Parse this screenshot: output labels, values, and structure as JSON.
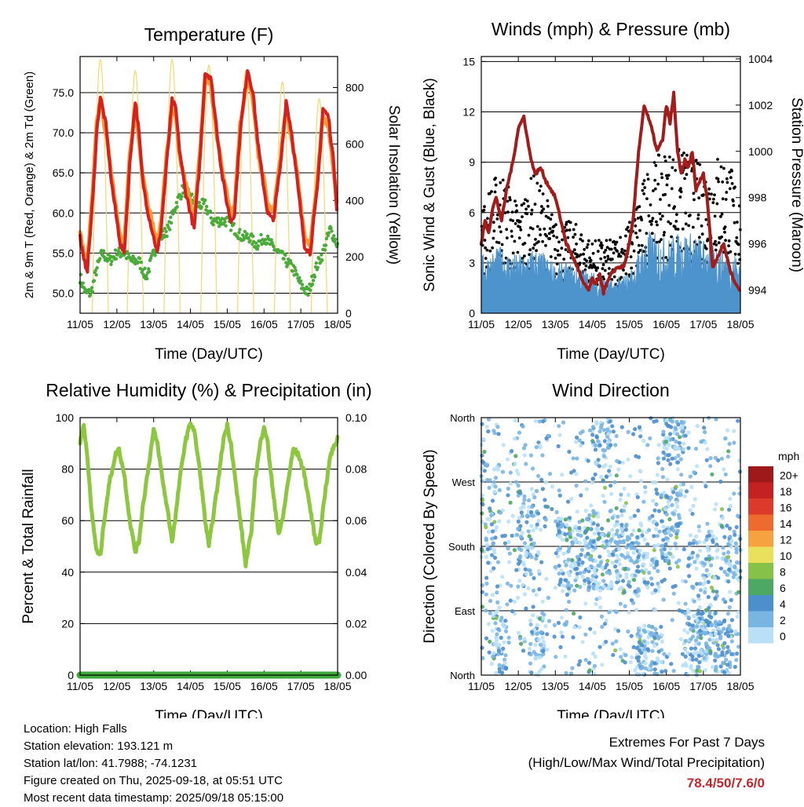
{
  "chart_data": [
    {
      "type": "line",
      "title": "Temperature (F)",
      "xlabel": "Time (Day/UTC)",
      "ylabel": "2m & 9m T (Red, Orange) & 2m Td (Green)",
      "ylabel_right": "Solar Insolation (Yellow)",
      "x_ticks": [
        "11/05",
        "12/05",
        "13/05",
        "14/05",
        "15/05",
        "16/05",
        "17/05",
        "18/05"
      ],
      "y_ticks": [
        "50.0",
        "55.0",
        "60.0",
        "65.0",
        "70.0",
        "75.0"
      ],
      "y_right_ticks": [
        "0",
        "200",
        "400",
        "600",
        "800"
      ],
      "ylim": [
        47.5,
        79.5
      ],
      "ylim_right": [
        0,
        910
      ],
      "grid": true,
      "colors": {
        "t2m": "#d62020",
        "t9m": "#f59b30",
        "td2m": "#4aaa3a",
        "solar": "#f5d76e"
      },
      "series": [
        {
          "key": "t2m",
          "x": [
            0,
            0.1,
            0.2,
            0.35,
            0.45,
            0.55,
            0.7,
            0.85,
            1.0,
            1.1,
            1.2,
            1.35,
            1.5,
            1.6,
            1.7,
            1.85,
            2.0,
            2.1,
            2.2,
            2.35,
            2.5,
            2.6,
            2.7,
            2.85,
            3.0,
            3.1,
            3.25,
            3.4,
            3.55,
            3.7,
            3.85,
            4.0,
            4.1,
            4.2,
            4.35,
            4.55,
            4.7,
            4.85,
            5.0,
            5.1,
            5.25,
            5.45,
            5.6,
            5.75,
            5.9,
            6.0,
            6.1,
            6.25,
            6.45,
            6.6,
            6.75,
            6.9,
            7.0
          ],
          "values": [
            57,
            54,
            53,
            62,
            70,
            74.5,
            71,
            64,
            59,
            56,
            55,
            66,
            74,
            70,
            64,
            60,
            57,
            55,
            58,
            66,
            74,
            73,
            68,
            63,
            60,
            58,
            66,
            77.5,
            77,
            71,
            65,
            61,
            59,
            60,
            70,
            78,
            75,
            68,
            63,
            60,
            59,
            66,
            74,
            70,
            64,
            60,
            56,
            55,
            63,
            73,
            72,
            66,
            59
          ]
        },
        {
          "key": "t9m",
          "x": [
            0,
            0.1,
            0.2,
            0.35,
            0.45,
            0.55,
            0.7,
            0.85,
            1.0,
            1.1,
            1.2,
            1.35,
            1.5,
            1.6,
            1.7,
            1.85,
            2.0,
            2.1,
            2.2,
            2.35,
            2.5,
            2.6,
            2.7,
            2.85,
            3.0,
            3.1,
            3.25,
            3.4,
            3.55,
            3.7,
            3.85,
            4.0,
            4.1,
            4.2,
            4.35,
            4.55,
            4.7,
            4.85,
            5.0,
            5.1,
            5.25,
            5.45,
            5.6,
            5.75,
            5.9,
            6.0,
            6.1,
            6.25,
            6.45,
            6.6,
            6.75,
            6.9,
            7.0
          ],
          "values": [
            57.5,
            55,
            54,
            63,
            71,
            74,
            70,
            65,
            60,
            57,
            56,
            67,
            73,
            69,
            65,
            61,
            58,
            56,
            59,
            67,
            73,
            72,
            67,
            64,
            61,
            59,
            67,
            77,
            76,
            70,
            66,
            62,
            60,
            61,
            71,
            77,
            74,
            67,
            64,
            61,
            60,
            67,
            73,
            69,
            65,
            61,
            57,
            56,
            64,
            72,
            71,
            65,
            60
          ]
        },
        {
          "key": "td2m",
          "x": [
            0,
            0.15,
            0.3,
            0.45,
            0.6,
            0.8,
            1.0,
            1.2,
            1.4,
            1.6,
            1.8,
            2.0,
            2.2,
            2.4,
            2.6,
            2.8,
            3.0,
            3.2,
            3.4,
            3.6,
            3.8,
            4.0,
            4.2,
            4.4,
            4.6,
            4.8,
            5.0,
            5.2,
            5.4,
            5.6,
            5.8,
            6.0,
            6.2,
            6.4,
            6.6,
            6.8,
            7.0
          ],
          "values": [
            52,
            50,
            50,
            53,
            55,
            54,
            55,
            55,
            54,
            54,
            52,
            55,
            57,
            58,
            61,
            63,
            62,
            61,
            61,
            59,
            59,
            59,
            58,
            57,
            57,
            56,
            57,
            56,
            55,
            54,
            53,
            51,
            50,
            53,
            55,
            58,
            56
          ]
        },
        {
          "key": "solar",
          "peaks": [
            0.55,
            1.5,
            2.5,
            3.5,
            4.5,
            5.5,
            6.5
          ],
          "values": [
            900,
            860,
            900,
            880,
            860,
            820,
            760
          ]
        }
      ]
    },
    {
      "type": "scatter",
      "title": "Winds (mph) & Pressure (mb)",
      "xlabel": "Time (Day/UTC)",
      "ylabel": "Sonic Wind & Gust (Blue, Black)",
      "ylabel_right": "Station Pressure (Maroon)",
      "x_ticks": [
        "11/05",
        "12/05",
        "13/05",
        "14/05",
        "15/05",
        "16/05",
        "17/05",
        "18/05"
      ],
      "y_ticks": [
        "0",
        "3",
        "6",
        "9",
        "12",
        "15"
      ],
      "y_right_ticks": [
        "994",
        "996",
        "998",
        "1000",
        "1002",
        "1004"
      ],
      "ylim": [
        0,
        15.3
      ],
      "ylim_right": [
        993.0,
        1004.1
      ],
      "grid": true,
      "colors": {
        "wind": "#4d93cc",
        "gust": "#000000",
        "pressure": "#a21c1c"
      },
      "series": [
        {
          "key": "pressure",
          "x": [
            0,
            0.1,
            0.2,
            0.3,
            0.4,
            0.55,
            0.7,
            0.85,
            1.0,
            1.15,
            1.3,
            1.45,
            1.6,
            1.75,
            1.9,
            2.0,
            2.15,
            2.3,
            2.45,
            2.6,
            2.75,
            2.9,
            3.0,
            3.1,
            3.2,
            3.3,
            3.4,
            3.55,
            3.7,
            3.85,
            4.0,
            4.1,
            4.25,
            4.4,
            4.5,
            4.6,
            4.75,
            4.9,
            5.0,
            5.1,
            5.2,
            5.3,
            5.4,
            5.5,
            5.6,
            5.7,
            5.8,
            5.9,
            6.0,
            6.1,
            6.25,
            6.4,
            6.55,
            6.7,
            6.85,
            7.0
          ],
          "values": [
            996,
            997,
            996.5,
            997.5,
            998,
            997,
            998.5,
            999.5,
            1001,
            1001.5,
            1000,
            999,
            999.3,
            998.7,
            998.3,
            998,
            997,
            996,
            995.5,
            995,
            994.3,
            994,
            994.5,
            994.2,
            994.7,
            993.9,
            994.3,
            994.8,
            995,
            995,
            996,
            997,
            1000,
            1002,
            1001.5,
            1001,
            1000,
            1000.5,
            1002,
            1001.2,
            1002.5,
            1000,
            999,
            999.6,
            999.3,
            1000,
            998.3,
            998.7,
            999,
            998,
            995,
            995.5,
            996,
            995,
            994.3,
            994
          ]
        },
        {
          "key": "wind",
          "envelope_x": [
            0,
            0.5,
            1,
            1.5,
            2,
            2.5,
            3,
            3.5,
            4,
            4.5,
            5,
            5.5,
            6,
            6.5,
            7
          ],
          "envelope_top": [
            3.5,
            4,
            3.5,
            4,
            3,
            3,
            2.5,
            2,
            2.5,
            5,
            4.5,
            5,
            4.5,
            4,
            3.5
          ]
        },
        {
          "key": "gust",
          "envelope_x": [
            0,
            0.5,
            1,
            1.5,
            2,
            2.5,
            3,
            3.5,
            4,
            4.5,
            5,
            5.5,
            6,
            6.5,
            7
          ],
          "envelope_top": [
            6,
            8,
            6,
            8,
            5,
            5,
            4,
            4,
            5,
            8,
            9,
            9,
            8,
            9,
            7
          ]
        }
      ]
    },
    {
      "type": "line",
      "title": "Relative Humidity (%) & Precipitation (in)",
      "xlabel": "Time (Day/UTC)",
      "ylabel": "Percent & Total Rainfall",
      "x_ticks": [
        "11/05",
        "12/05",
        "13/05",
        "14/05",
        "15/05",
        "16/05",
        "17/05",
        "18/05"
      ],
      "y_ticks": [
        "0",
        "20",
        "40",
        "60",
        "80",
        "100"
      ],
      "y_right_ticks": [
        "0.00",
        "0.02",
        "0.04",
        "0.06",
        "0.08",
        "0.10"
      ],
      "ylim": [
        0,
        100
      ],
      "ylim_right": [
        0,
        0.1
      ],
      "grid": true,
      "colors": {
        "rh": "#8dc63f",
        "precip": "#3ea83a"
      },
      "series": [
        {
          "key": "rh",
          "x": [
            0,
            0.1,
            0.2,
            0.3,
            0.45,
            0.55,
            0.65,
            0.8,
            0.95,
            1.05,
            1.2,
            1.35,
            1.5,
            1.6,
            1.7,
            1.85,
            2.0,
            2.1,
            2.25,
            2.4,
            2.5,
            2.6,
            2.7,
            2.85,
            3.0,
            3.1,
            3.25,
            3.4,
            3.5,
            3.6,
            3.75,
            3.9,
            4.0,
            4.1,
            4.25,
            4.4,
            4.5,
            4.65,
            4.75,
            4.9,
            5.0,
            5.1,
            5.25,
            5.4,
            5.5,
            5.65,
            5.8,
            5.95,
            6.1,
            6.25,
            6.4,
            6.5,
            6.65,
            6.8,
            7.0
          ],
          "values": [
            90,
            97,
            85,
            65,
            48,
            46,
            60,
            75,
            85,
            88,
            78,
            60,
            48,
            52,
            65,
            80,
            95,
            90,
            75,
            62,
            52,
            62,
            75,
            90,
            98,
            95,
            80,
            60,
            50,
            60,
            75,
            92,
            97,
            90,
            72,
            55,
            43,
            55,
            75,
            90,
            97,
            90,
            70,
            55,
            60,
            75,
            88,
            85,
            78,
            65,
            52,
            52,
            70,
            85,
            92
          ]
        },
        {
          "key": "precip",
          "x": [
            0,
            7
          ],
          "values": [
            0,
            0
          ]
        }
      ]
    },
    {
      "type": "scatter",
      "title": "Wind Direction",
      "xlabel": "Time (Day/UTC)",
      "ylabel": "Direction (Colored By Speed)",
      "x_ticks": [
        "11/05",
        "12/05",
        "13/05",
        "14/05",
        "15/05",
        "16/05",
        "17/05",
        "18/05"
      ],
      "y_ticks": [
        "North",
        "East",
        "South",
        "West",
        "North"
      ],
      "ylim": [
        0,
        360
      ],
      "grid": true,
      "legend": {
        "title": "mph",
        "labels": [
          "20+",
          "18",
          "16",
          "14",
          "12",
          "10",
          "8",
          "6",
          "4",
          "2",
          "0"
        ],
        "colors": [
          "#9e1a1a",
          "#c42222",
          "#dd3a2b",
          "#ee6a2e",
          "#f7a240",
          "#e9e05b",
          "#86c24a",
          "#4ca863",
          "#4d8fcc",
          "#79b5e3",
          "#b9e0f7"
        ]
      }
    }
  ],
  "info": {
    "location": "Location: High Falls",
    "elevation": "Station elevation: 193.121 m",
    "latlon": "Station lat/lon: 41.7988; -74.1231",
    "created": "Figure created on Thu, 2025-09-18, at 05:51 UTC",
    "recent": "Most recent data timestamp: 2025/09/18 05:15:00"
  },
  "extremes": {
    "heading": "Extremes For Past 7 Days",
    "subheading": "(High/Low/Max Wind/Total Precipitation)",
    "value": "78.4/50/7.6/0"
  }
}
